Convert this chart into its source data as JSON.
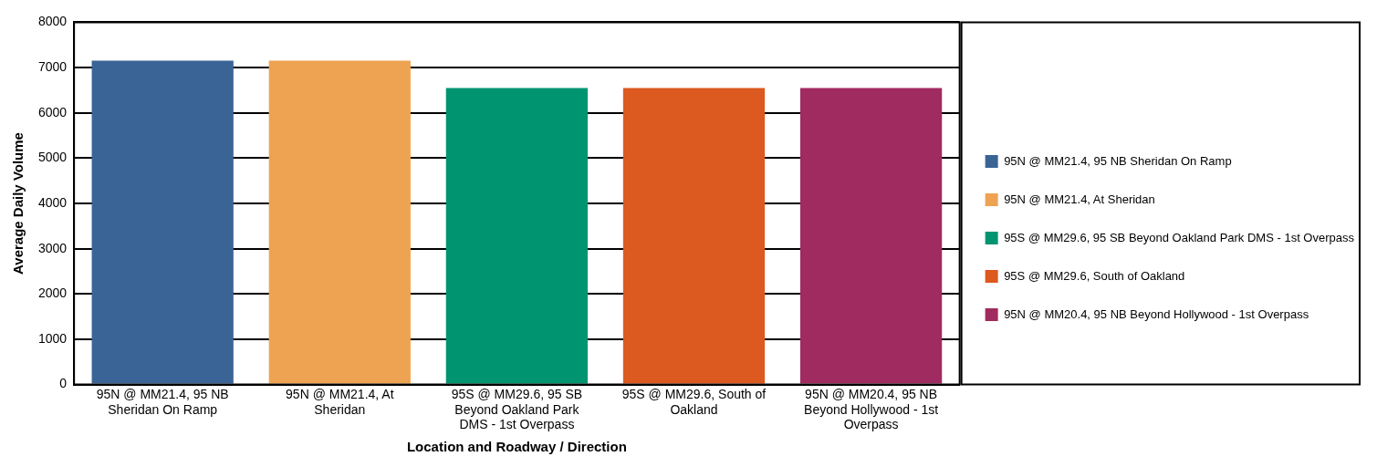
{
  "chart_data": {
    "type": "bar",
    "xlabel": "Location and Roadway / Direction",
    "ylabel": "Average Daily Volume",
    "categories": [
      "95N @ MM21.4, 95 NB Sheridan On Ramp",
      "95N @ MM21.4, At Sheridan",
      "95S @ MM29.6, 95 SB Beyond Oakland Park DMS - 1st Overpass",
      "95S @ MM29.6, South of Oakland",
      "95N @ MM20.4, 95 NB Beyond Hollywood - 1st Overpass"
    ],
    "series": [
      {
        "name": "95N @ MM21.4, 95 NB Sheridan On Ramp",
        "color": "#3a6496",
        "values": [
          7150,
          null,
          null,
          null,
          null
        ]
      },
      {
        "name": "95N @ MM21.4, At Sheridan",
        "color": "#eea352",
        "values": [
          null,
          7150,
          null,
          null,
          null
        ]
      },
      {
        "name": "95S @ MM29.6, 95 SB Beyond Oakland Park DMS - 1st Overpass",
        "color": "#009471",
        "values": [
          null,
          null,
          6550,
          null,
          null
        ]
      },
      {
        "name": "95S @ MM29.6, South of Oakland",
        "color": "#dc5920",
        "values": [
          null,
          null,
          null,
          6550,
          null
        ]
      },
      {
        "name": "95N @ MM20.4, 95 NB Beyond Hollywood - 1st Overpass",
        "color": "#a02b60",
        "values": [
          null,
          null,
          null,
          null,
          6550
        ]
      }
    ],
    "ylim": [
      0,
      8000
    ],
    "yticks": [
      0,
      1000,
      2000,
      3000,
      4000,
      5000,
      6000,
      7000,
      8000
    ],
    "grid": "y",
    "legend": "right"
  }
}
